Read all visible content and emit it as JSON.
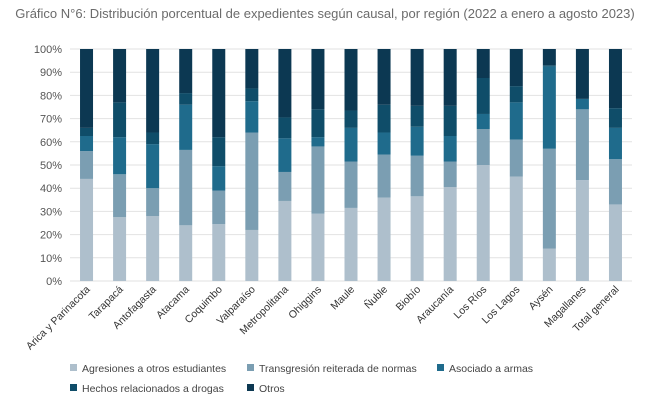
{
  "chart_data": {
    "type": "bar",
    "stacked": true,
    "title": "Gráfico N°6: Distribución porcentual de expedientes según causal, por región (2022 a enero a agosto 2023)",
    "ylim": [
      0,
      100
    ],
    "y_ticks": [
      "0%",
      "10%",
      "20%",
      "30%",
      "40%",
      "50%",
      "60%",
      "70%",
      "80%",
      "90%",
      "100%"
    ],
    "categories": [
      "Arica y Parinacota",
      "Tarapacá",
      "Antofagasta",
      "Atacama",
      "Coquimbo",
      "Valparaíso",
      "Metropolitana",
      "Ohiggins",
      "Maule",
      "Ñuble",
      "Biobío",
      "Araucanía",
      "Los Ríos",
      "Los Lagos",
      "Aysén",
      "Magallanes",
      "Total general"
    ],
    "series": [
      {
        "name": "Agresiones a otros estudiantes",
        "color": "#aebfcc",
        "values": [
          44,
          27.5,
          28,
          24,
          24.5,
          22,
          34.5,
          29,
          31.5,
          36,
          36.5,
          40.5,
          50,
          45,
          14,
          43.5,
          33
        ]
      },
      {
        "name": "Transgresión reiterada de normas",
        "color": "#7b9eb2",
        "values": [
          12,
          18.5,
          12,
          32.5,
          14.5,
          42,
          12.5,
          29,
          20,
          18.5,
          17.5,
          11,
          15.5,
          16,
          43,
          30.5,
          19.5
        ]
      },
      {
        "name": "Asociado a armas",
        "color": "#1f6b8c",
        "values": [
          6.5,
          16,
          19,
          19.5,
          10.5,
          13.5,
          14.5,
          4,
          14.5,
          9.5,
          12.5,
          11,
          6.5,
          16,
          35.5,
          4.5,
          13.5
        ]
      },
      {
        "name": "Hechos relacionados a drogas",
        "color": "#0f4d69",
        "values": [
          3.5,
          15,
          5,
          5,
          12.5,
          5.5,
          9,
          12,
          7.5,
          12,
          9,
          13,
          15.5,
          7,
          0.5,
          0,
          8.5
        ]
      },
      {
        "name": "Otros",
        "color": "#0c3852",
        "values": [
          34,
          23,
          36,
          19,
          38,
          17,
          29.5,
          26,
          26.5,
          24,
          24.5,
          24.5,
          12.5,
          16,
          7,
          21.5,
          25.5
        ]
      }
    ]
  }
}
